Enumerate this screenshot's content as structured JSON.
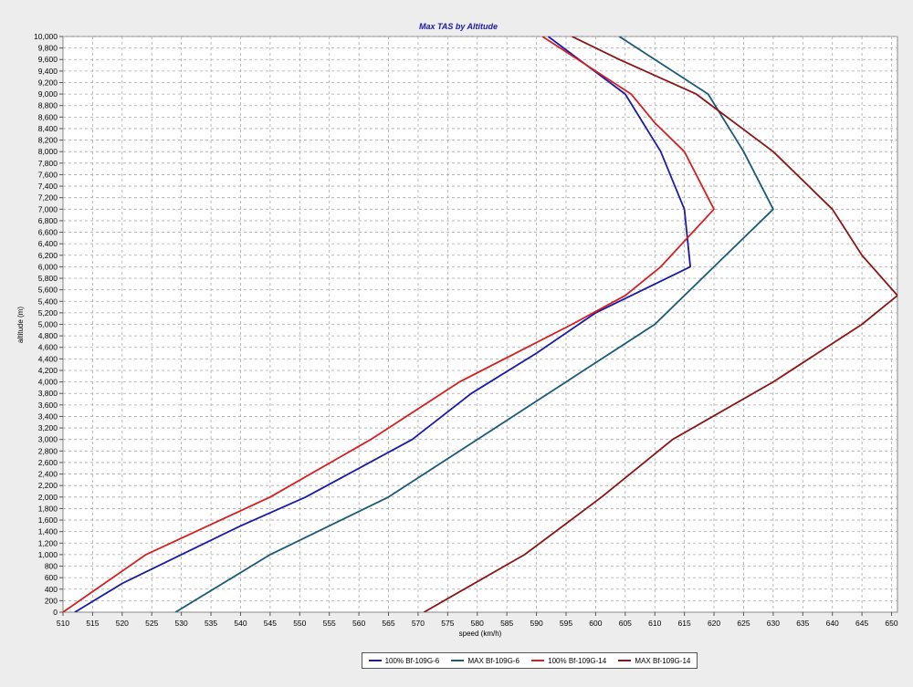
{
  "chart_data": {
    "type": "line",
    "title": "Max TAS by Altitude",
    "xlabel": "speed (km/h)",
    "ylabel": "altitude (m)",
    "xlim": [
      510,
      651
    ],
    "ylim": [
      0,
      10000
    ],
    "x_ticks": [
      510,
      515,
      520,
      525,
      530,
      535,
      540,
      545,
      550,
      555,
      560,
      565,
      570,
      575,
      580,
      585,
      590,
      595,
      600,
      605,
      610,
      615,
      620,
      625,
      630,
      635,
      640,
      645,
      650
    ],
    "y_ticks": [
      0,
      200,
      400,
      600,
      800,
      1000,
      1200,
      1400,
      1600,
      1800,
      2000,
      2200,
      2400,
      2600,
      2800,
      3000,
      3200,
      3400,
      3600,
      3800,
      4000,
      4200,
      4400,
      4600,
      4800,
      5000,
      5200,
      5400,
      5600,
      5800,
      6000,
      6200,
      6400,
      6600,
      6800,
      7000,
      7200,
      7400,
      7600,
      7800,
      8000,
      8200,
      8400,
      8600,
      8800,
      9000,
      9200,
      9400,
      9600,
      9800,
      10000
    ],
    "x_tick_labels": [
      "510",
      "515",
      "520",
      "525",
      "530",
      "535",
      "540",
      "545",
      "550",
      "555",
      "560",
      "565",
      "570",
      "575",
      "580",
      "585",
      "590",
      "595",
      "600",
      "605",
      "610",
      "615",
      "620",
      "625",
      "630",
      "635",
      "640",
      "645",
      "650"
    ],
    "y_tick_labels": [
      "0",
      "200",
      "400",
      "600",
      "800",
      "1,000",
      "1,200",
      "1,400",
      "1,600",
      "1,800",
      "2,000",
      "2,200",
      "2,400",
      "2,600",
      "2,800",
      "3,000",
      "3,200",
      "3,400",
      "3,600",
      "3,800",
      "4,000",
      "4,200",
      "4,400",
      "4,600",
      "4,800",
      "5,000",
      "5,200",
      "5,400",
      "5,600",
      "5,800",
      "6,000",
      "6,200",
      "6,400",
      "6,600",
      "6,800",
      "7,000",
      "7,200",
      "7,400",
      "7,600",
      "7,800",
      "8,000",
      "8,200",
      "8,400",
      "8,600",
      "8,800",
      "9,000",
      "9,200",
      "9,400",
      "9,600",
      "9,800",
      "10,000"
    ],
    "grid": true,
    "legend_position": "bottom-center",
    "series": [
      {
        "name": "100% Bf-109G-6",
        "color": "#1a1aaa",
        "points": [
          [
            512,
            0
          ],
          [
            520,
            500
          ],
          [
            530,
            1000
          ],
          [
            540,
            1500
          ],
          [
            551,
            2000
          ],
          [
            560,
            2500
          ],
          [
            569,
            3000
          ],
          [
            579,
            3800
          ],
          [
            590,
            4500
          ],
          [
            600,
            5200
          ],
          [
            616,
            6000
          ],
          [
            615,
            7000
          ],
          [
            611,
            8000
          ],
          [
            605,
            9000
          ],
          [
            592,
            10000
          ]
        ]
      },
      {
        "name": "MAX Bf-109G-6",
        "color": "#1a5a78",
        "points": [
          [
            529,
            0
          ],
          [
            545,
            1000
          ],
          [
            565,
            2000
          ],
          [
            580,
            3000
          ],
          [
            595,
            4000
          ],
          [
            610,
            5000
          ],
          [
            620,
            6000
          ],
          [
            630,
            7000
          ],
          [
            625,
            8000
          ],
          [
            619,
            9000
          ],
          [
            604,
            10000
          ]
        ]
      },
      {
        "name": "100% Bf-109G-14",
        "color": "#d42020",
        "points": [
          [
            510,
            0
          ],
          [
            524,
            1000
          ],
          [
            545,
            2000
          ],
          [
            562,
            3000
          ],
          [
            577,
            4000
          ],
          [
            596,
            5000
          ],
          [
            605,
            5500
          ],
          [
            611,
            6000
          ],
          [
            620,
            7000
          ],
          [
            615,
            8000
          ],
          [
            610,
            8500
          ],
          [
            606,
            9000
          ],
          [
            591,
            10000
          ]
        ]
      },
      {
        "name": "MAX Bf-109G-14",
        "color": "#8b1515",
        "points": [
          [
            571,
            0
          ],
          [
            588,
            1000
          ],
          [
            601,
            2000
          ],
          [
            613,
            3000
          ],
          [
            630,
            4000
          ],
          [
            645,
            5000
          ],
          [
            651,
            5500
          ],
          [
            645,
            6200
          ],
          [
            640,
            7000
          ],
          [
            630,
            8000
          ],
          [
            617,
            9000
          ],
          [
            604,
            9600
          ],
          [
            596,
            10000
          ]
        ]
      }
    ]
  }
}
